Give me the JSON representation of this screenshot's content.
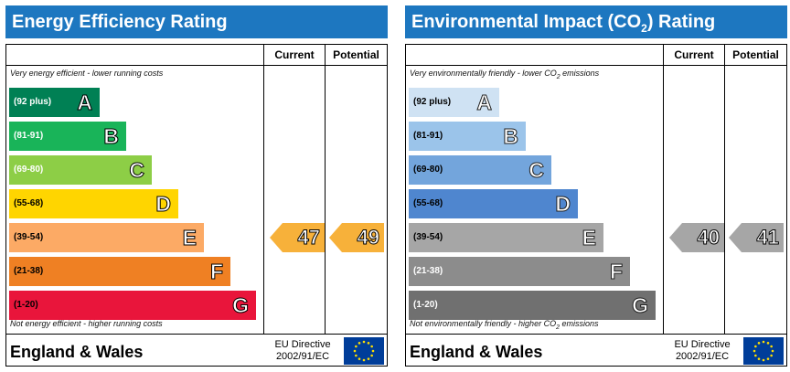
{
  "colors": {
    "title_bar": "#1d77c0"
  },
  "energy_efficiency": {
    "title": "Energy Efficiency Rating",
    "current_header": "Current",
    "potential_header": "Potential",
    "note_top": "Very energy efficient - lower running costs",
    "note_bottom": "Not energy efficient - higher running costs",
    "bands": [
      {
        "range": "(92 plus)",
        "letter": "A",
        "color": "#008054",
        "text_color": "#ffffff"
      },
      {
        "range": "(81-91)",
        "letter": "B",
        "color": "#19b459",
        "text_color": "#ffffff"
      },
      {
        "range": "(69-80)",
        "letter": "C",
        "color": "#8dce46",
        "text_color": "#ffffff"
      },
      {
        "range": "(55-68)",
        "letter": "D",
        "color": "#ffd500",
        "text_color": "#000000"
      },
      {
        "range": "(39-54)",
        "letter": "E",
        "color": "#fcaa65",
        "text_color": "#000000"
      },
      {
        "range": "(21-38)",
        "letter": "F",
        "color": "#ef8023",
        "text_color": "#000000"
      },
      {
        "range": "(1-20)",
        "letter": "G",
        "color": "#e9153b",
        "text_color": "#000000"
      }
    ],
    "current": {
      "value": "47",
      "band": "E",
      "color": "#f7b13a"
    },
    "potential": {
      "value": "49",
      "band": "E",
      "color": "#f7b13a"
    },
    "footer_region": "England & Wales",
    "directive_line1": "EU Directive",
    "directive_line2": "2002/91/EC"
  },
  "environmental_impact": {
    "title_main": "Environmental Impact (CO",
    "title_sub": "2",
    "title_end": ") Rating",
    "current_header": "Current",
    "potential_header": "Potential",
    "note_top_main": "Very environmentally friendly - lower CO",
    "note_top_sub": "2",
    "note_top_end": " emissions",
    "note_bottom_main": "Not environmentally friendly - higher CO",
    "note_bottom_sub": "2",
    "note_bottom_end": " emissions",
    "bands": [
      {
        "range": "(92 plus)",
        "letter": "A",
        "color": "#cfe2f3",
        "text_color": "#000000"
      },
      {
        "range": "(81-91)",
        "letter": "B",
        "color": "#9bc4ea",
        "text_color": "#000000"
      },
      {
        "range": "(69-80)",
        "letter": "C",
        "color": "#73a5dc",
        "text_color": "#000000"
      },
      {
        "range": "(55-68)",
        "letter": "D",
        "color": "#4f86cf",
        "text_color": "#000000"
      },
      {
        "range": "(39-54)",
        "letter": "E",
        "color": "#a6a6a6",
        "text_color": "#000000"
      },
      {
        "range": "(21-38)",
        "letter": "F",
        "color": "#8c8c8c",
        "text_color": "#ffffff"
      },
      {
        "range": "(1-20)",
        "letter": "G",
        "color": "#707070",
        "text_color": "#ffffff"
      }
    ],
    "current": {
      "value": "40",
      "band": "E",
      "color": "#a6a6a6"
    },
    "potential": {
      "value": "41",
      "band": "E",
      "color": "#a6a6a6"
    },
    "footer_region": "England & Wales",
    "directive_line1": "EU Directive",
    "directive_line2": "2002/91/EC"
  }
}
